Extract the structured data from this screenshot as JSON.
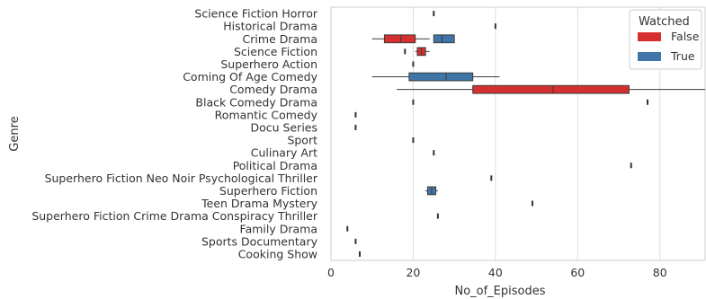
{
  "chart_data": {
    "type": "boxplot",
    "orientation": "horizontal",
    "xlabel": "No_of_Episodes",
    "ylabel": "Genre",
    "xlim": [
      0,
      91
    ],
    "xticks": [
      0,
      20,
      40,
      60,
      80
    ],
    "grid": "vertical",
    "legend": {
      "title": "Watched",
      "position": "top-right",
      "entries": [
        {
          "label": "False",
          "color": "#d62f2f"
        },
        {
          "label": "True",
          "color": "#3f75a8"
        }
      ]
    },
    "categories": [
      "Science Fiction Horror",
      "Historical Drama",
      "Crime Drama",
      "Science Fiction",
      "Superhero Action",
      "Coming Of Age Comedy",
      "Comedy Drama",
      "Black Comedy Drama",
      "Romantic Comedy",
      "Docu Series",
      "Sport",
      "Culinary Art",
      "Political Drama",
      "Superhero Fiction Neo Noir Psychological Thriller",
      "Superhero Fiction",
      "Teen Drama Mystery",
      "Superhero Fiction Crime Drama Conspiracy Thriller",
      "Family Drama",
      "Sports Documentary",
      "Cooking Show"
    ],
    "series": [
      {
        "name": "False",
        "color": "#d62f2f",
        "boxes": [
          {
            "category": "Science Fiction Horror",
            "min": 25,
            "q1": 25,
            "median": 25,
            "q3": 25,
            "max": 25
          },
          {
            "category": "Historical Drama",
            "min": 40,
            "q1": 40,
            "median": 40,
            "q3": 40,
            "max": 40
          },
          {
            "category": "Crime Drama",
            "min": 10,
            "q1": 13,
            "median": 17,
            "q3": 20.5,
            "max": 24
          },
          {
            "category": "Science Fiction",
            "min": 20.5,
            "q1": 21,
            "median": 22,
            "q3": 23,
            "max": 24
          },
          {
            "category": "Superhero Action",
            "min": 20,
            "q1": 20,
            "median": 20,
            "q3": 20,
            "max": 20
          },
          {
            "category": "Comedy Drama",
            "min": 16,
            "q1": 34.5,
            "median": 54,
            "q3": 72.5,
            "max": 91
          },
          {
            "category": "Black Comedy Drama",
            "min": 20,
            "q1": 20,
            "median": 20,
            "q3": 20,
            "max": 20
          },
          {
            "category": "Romantic Comedy",
            "min": 6,
            "q1": 6,
            "median": 6,
            "q3": 6,
            "max": 6
          },
          {
            "category": "Docu Series",
            "min": 6,
            "q1": 6,
            "median": 6,
            "q3": 6,
            "max": 6
          },
          {
            "category": "Sport",
            "min": 20,
            "q1": 20,
            "median": 20,
            "q3": 20,
            "max": 20
          },
          {
            "category": "Culinary Art",
            "min": 25,
            "q1": 25,
            "median": 25,
            "q3": 25,
            "max": 25
          },
          {
            "category": "Political Drama",
            "min": 73,
            "q1": 73,
            "median": 73,
            "q3": 73,
            "max": 73
          },
          {
            "category": "Superhero Fiction Neo Noir Psychological Thriller",
            "min": 39,
            "q1": 39,
            "median": 39,
            "q3": 39,
            "max": 39
          },
          {
            "category": "Teen Drama Mystery",
            "min": 49,
            "q1": 49,
            "median": 49,
            "q3": 49,
            "max": 49
          },
          {
            "category": "Superhero Fiction Crime Drama Conspiracy Thriller",
            "min": 26,
            "q1": 26,
            "median": 26,
            "q3": 26,
            "max": 26
          },
          {
            "category": "Family Drama",
            "min": 4,
            "q1": 4,
            "median": 4,
            "q3": 4,
            "max": 4
          },
          {
            "category": "Sports Documentary",
            "min": 6,
            "q1": 6,
            "median": 6,
            "q3": 6,
            "max": 6
          },
          {
            "category": "Cooking Show",
            "min": 7,
            "q1": 7,
            "median": 7,
            "q3": 7,
            "max": 7
          }
        ]
      },
      {
        "name": "True",
        "color": "#3f75a8",
        "boxes": [
          {
            "category": "Crime Drama",
            "min": 25,
            "q1": 25,
            "median": 27,
            "q3": 30,
            "max": 30
          },
          {
            "category": "Science Fiction",
            "min": 18,
            "q1": 18,
            "median": 18,
            "q3": 18,
            "max": 18
          },
          {
            "category": "Coming Of Age Comedy",
            "min": 10,
            "q1": 19,
            "median": 28,
            "q3": 34.5,
            "max": 41
          },
          {
            "category": "Black Comedy Drama",
            "min": 77,
            "q1": 77,
            "median": 77,
            "q3": 77,
            "max": 77
          },
          {
            "category": "Superhero Fiction",
            "min": 23,
            "q1": 23.5,
            "median": 24.5,
            "q3": 25.5,
            "max": 26
          }
        ]
      }
    ]
  }
}
